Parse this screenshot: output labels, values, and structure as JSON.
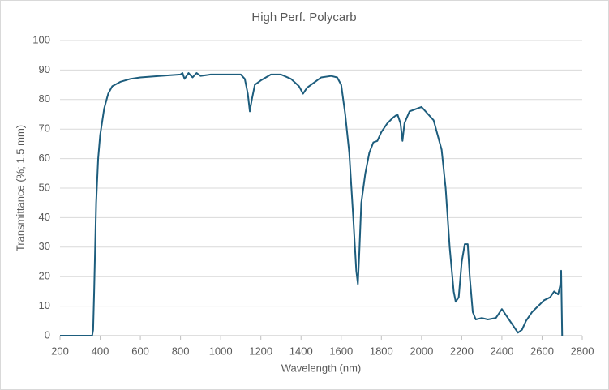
{
  "chart_data": {
    "type": "line",
    "title": "High Perf. Polycarb",
    "x_label": "Wavelength (nm)",
    "y_label": "Transmittance (%; 1.5 mm)",
    "x": [
      200,
      300,
      360,
      365,
      370,
      380,
      390,
      400,
      420,
      440,
      460,
      500,
      550,
      600,
      700,
      800,
      810,
      820,
      840,
      860,
      880,
      900,
      950,
      1000,
      1050,
      1100,
      1120,
      1135,
      1145,
      1155,
      1170,
      1200,
      1250,
      1300,
      1350,
      1390,
      1410,
      1430,
      1470,
      1500,
      1550,
      1580,
      1600,
      1620,
      1640,
      1660,
      1675,
      1683,
      1690,
      1700,
      1720,
      1740,
      1760,
      1780,
      1800,
      1830,
      1860,
      1880,
      1895,
      1905,
      1915,
      1940,
      1980,
      2000,
      2020,
      2060,
      2080,
      2100,
      2120,
      2140,
      2160,
      2170,
      2185,
      2200,
      2215,
      2230,
      2240,
      2255,
      2270,
      2300,
      2330,
      2370,
      2400,
      2420,
      2450,
      2480,
      2500,
      2520,
      2550,
      2580,
      2610,
      2640,
      2660,
      2680,
      2690,
      2695,
      2700
    ],
    "series": [
      {
        "name": "Transmittance",
        "color": "#1d5d7d",
        "values": [
          0,
          0,
          0,
          2,
          15,
          45,
          60,
          68,
          77,
          82,
          84.5,
          86,
          87,
          87.5,
          88,
          88.5,
          89,
          87,
          89,
          87.5,
          89,
          88,
          88.5,
          88.5,
          88.5,
          88.5,
          87,
          82,
          76,
          80,
          85,
          86.5,
          88.5,
          88.5,
          87,
          84.5,
          82,
          84,
          86,
          87.5,
          88,
          87.5,
          85,
          75,
          62,
          40,
          22,
          17.5,
          28,
          45,
          55,
          62,
          65.5,
          66,
          69,
          72,
          74,
          75,
          72,
          66,
          72,
          76,
          77,
          77.5,
          76,
          73,
          68,
          63,
          50,
          30,
          15,
          11.5,
          13,
          25,
          31,
          31,
          20,
          8,
          5.5,
          6,
          5.5,
          6,
          9,
          7,
          4,
          1,
          2,
          5,
          8,
          10,
          12,
          13,
          15,
          14,
          17,
          22,
          0
        ]
      }
    ],
    "xlim": [
      200,
      2800
    ],
    "xticks": [
      200,
      400,
      600,
      800,
      1000,
      1200,
      1400,
      1600,
      1800,
      2000,
      2200,
      2400,
      2600,
      2800
    ],
    "ylim": [
      0,
      100
    ],
    "yticks": [
      0,
      10,
      20,
      30,
      40,
      50,
      60,
      70,
      80,
      90,
      100
    ],
    "grid": true
  }
}
